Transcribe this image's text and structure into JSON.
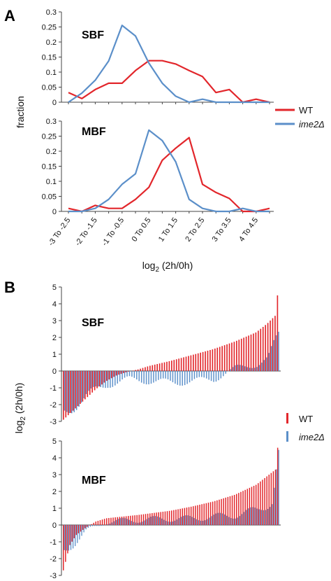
{
  "panels": {
    "a_letter": "A",
    "b_letter": "B"
  },
  "colors": {
    "wt": "#e2262b",
    "ime2": "#5b8fc9"
  },
  "legend": {
    "wt": "WT",
    "ime2": "ime2Δ"
  },
  "chart_data": [
    {
      "id": "A-SBF",
      "type": "line",
      "title": "SBF",
      "ylabel": "fraction",
      "ylim": [
        0,
        0.3
      ],
      "yticks": [
        0,
        0.05,
        0.1,
        0.15,
        0.2,
        0.25,
        0.3
      ],
      "ytick_labels": [
        "0",
        "0.05",
        "0.1",
        "0.15",
        "0.2",
        "0.25",
        "0.3"
      ],
      "categories": [
        "-3 To -2.5",
        "-2.5 To -2",
        "-2 To -1.5",
        "-1.5 To -1",
        "-1 To -0.5",
        "-0.5 To 0",
        "0 To 0.5",
        "0.5 To 1",
        "1 To 1.5",
        "1.5 To 2",
        "2 To 2.5",
        "2.5 To 3",
        "3 To 3.5",
        "3.5 To 4",
        "4 To 4.5",
        "4.5 To 5"
      ],
      "series": [
        {
          "name": "WT",
          "values": [
            0.032,
            0.012,
            0.042,
            0.063,
            0.063,
            0.105,
            0.138,
            0.138,
            0.127,
            0.105,
            0.085,
            0.032,
            0.042,
            0.0,
            0.01,
            0.0
          ]
        },
        {
          "name": "ime2Δ",
          "values": [
            0.0,
            0.03,
            0.073,
            0.137,
            0.255,
            0.22,
            0.13,
            0.063,
            0.02,
            0.0,
            0.01,
            0.0,
            0.0,
            0.0,
            0.0,
            0.0
          ]
        }
      ]
    },
    {
      "id": "A-MBF",
      "type": "line",
      "title": "MBF",
      "ylabel": "fraction",
      "xlabel": "log2 (2h/0h)",
      "ylim": [
        0,
        0.3
      ],
      "yticks": [
        0,
        0.05,
        0.1,
        0.15,
        0.2,
        0.25,
        0.3
      ],
      "ytick_labels": [
        "0",
        "0.05",
        "0.1",
        "0.15",
        "0.2",
        "0.25",
        "0.3"
      ],
      "categories": [
        "-3 To -2.5",
        "-2.5 To -2",
        "-2 To -1.5",
        "-1.5 To -1",
        "-1 To -0.5",
        "-0.5 To 0",
        "0 To 0.5",
        "0.5 To 1",
        "1 To 1.5",
        "1.5 To 2",
        "2 To 2.5",
        "2.5 To 3",
        "3 To 3.5",
        "3.5 To 4",
        "4 To 4.5",
        "4.5 To 5"
      ],
      "category_labels": [
        "-3 To -2.5",
        "",
        "-2 To -1.5",
        "",
        "-1 To -0.5",
        "",
        "0 To 0.5",
        "",
        "1 To 1.5",
        "",
        "2 To 2.5",
        "",
        "3 To 3.5",
        "",
        "4 To 4.5",
        ""
      ],
      "series": [
        {
          "name": "WT",
          "values": [
            0.01,
            0.0,
            0.02,
            0.01,
            0.01,
            0.04,
            0.08,
            0.17,
            0.21,
            0.245,
            0.09,
            0.063,
            0.043,
            0.0,
            0.0,
            0.01
          ]
        },
        {
          "name": "ime2Δ",
          "values": [
            0.0,
            0.0,
            0.01,
            0.04,
            0.09,
            0.125,
            0.27,
            0.235,
            0.165,
            0.04,
            0.01,
            0.0,
            0.0,
            0.01,
            0.0,
            0.0
          ]
        }
      ]
    },
    {
      "id": "B-SBF",
      "type": "bar",
      "title": "SBF",
      "ylabel": "log2 (2h/0h)",
      "ylim": [
        -3,
        5
      ],
      "yticks": [
        -3,
        -2,
        -1,
        0,
        1,
        2,
        3,
        4,
        5
      ],
      "ytick_labels": [
        "-3",
        "-2",
        "-1",
        "0",
        "1",
        "2",
        "3",
        "4",
        "5"
      ],
      "n_genes": 90,
      "wt_anchors": [
        [
          0,
          -2.9
        ],
        [
          0.05,
          -2.3
        ],
        [
          0.1,
          -1.7
        ],
        [
          0.15,
          -1.1
        ],
        [
          0.2,
          -0.6
        ],
        [
          0.25,
          -0.25
        ],
        [
          0.3,
          -0.05
        ],
        [
          0.35,
          0.1
        ],
        [
          0.4,
          0.3
        ],
        [
          0.5,
          0.6
        ],
        [
          0.6,
          0.95
        ],
        [
          0.7,
          1.3
        ],
        [
          0.8,
          1.75
        ],
        [
          0.9,
          2.3
        ],
        [
          0.95,
          2.8
        ],
        [
          0.99,
          3.3
        ],
        [
          1,
          4.5
        ]
      ],
      "ime2_anchors": [
        [
          0,
          -2.5
        ],
        [
          0.1,
          -1.5
        ],
        [
          0.2,
          -0.8
        ],
        [
          0.3,
          -0.5
        ],
        [
          0.4,
          -0.6
        ],
        [
          0.5,
          -0.7
        ],
        [
          0.6,
          -0.6
        ],
        [
          0.7,
          -0.5
        ],
        [
          0.8,
          0.2
        ],
        [
          0.9,
          0.4
        ],
        [
          0.95,
          0.7
        ],
        [
          1,
          2.2
        ]
      ]
    },
    {
      "id": "B-MBF",
      "type": "bar",
      "title": "MBF",
      "ylabel": "log2 (2h/0h)",
      "ylim": [
        -3,
        5
      ],
      "yticks": [
        -3,
        -2,
        -1,
        0,
        1,
        2,
        3,
        4,
        5
      ],
      "ytick_labels": [
        "-3",
        "-2",
        "-1",
        "0",
        "1",
        "2",
        "3",
        "4",
        "5"
      ],
      "n_genes": 100,
      "wt_anchors": [
        [
          0,
          -2.7
        ],
        [
          0.03,
          -1.2
        ],
        [
          0.06,
          -0.6
        ],
        [
          0.1,
          -0.2
        ],
        [
          0.15,
          0.2
        ],
        [
          0.2,
          0.4
        ],
        [
          0.35,
          0.6
        ],
        [
          0.5,
          0.85
        ],
        [
          0.6,
          1.1
        ],
        [
          0.7,
          1.4
        ],
        [
          0.8,
          1.8
        ],
        [
          0.9,
          2.4
        ],
        [
          0.96,
          3.0
        ],
        [
          0.99,
          3.3
        ],
        [
          1,
          4.6
        ]
      ],
      "ime2_anchors": [
        [
          0,
          -1.6
        ],
        [
          0.05,
          -1.0
        ],
        [
          0.1,
          -0.4
        ],
        [
          0.2,
          0.2
        ],
        [
          0.4,
          0.35
        ],
        [
          0.6,
          0.4
        ],
        [
          0.8,
          0.6
        ],
        [
          0.9,
          0.9
        ],
        [
          0.97,
          1.4
        ],
        [
          1,
          4.0
        ]
      ]
    }
  ]
}
